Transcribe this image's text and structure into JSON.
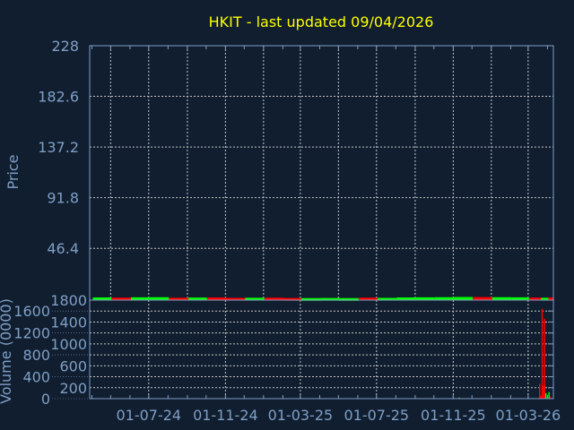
{
  "chart_data": [
    {
      "type": "line",
      "title": "HKIT - last updated 09/04/2026",
      "ylabel": "Price",
      "ylim": [
        0,
        228
      ],
      "yticks": [
        "228",
        "182.6",
        "137.2",
        "91.8",
        "46.4"
      ],
      "xticks": [
        "01-07-24",
        "01-11-24",
        "01-03-25",
        "01-07-25",
        "01-11-25",
        "01-03-26"
      ],
      "xrange": [
        "2024-03-27",
        "2026-04-09"
      ],
      "grid": true,
      "colors": {
        "up": "#00ff00",
        "down": "#ff0000",
        "title": "#ffff00",
        "axis": "#7f9fc6",
        "background": "#101e2f",
        "grid": "#c8c8c8"
      },
      "series": [
        {
          "values": [
            {
              "date": "2024-04-01",
              "price": 1.2,
              "dir": "up"
            },
            {
              "date": "2024-05-01",
              "price": 1.0,
              "dir": "down"
            },
            {
              "date": "2024-06-01",
              "price": 1.3,
              "dir": "up"
            },
            {
              "date": "2024-07-01",
              "price": 1.4,
              "dir": "up"
            },
            {
              "date": "2024-08-01",
              "price": 0.9,
              "dir": "down"
            },
            {
              "date": "2024-09-01",
              "price": 1.1,
              "dir": "up"
            },
            {
              "date": "2024-10-01",
              "price": 1.2,
              "dir": "down"
            },
            {
              "date": "2024-11-01",
              "price": 0.8,
              "dir": "down"
            },
            {
              "date": "2024-12-01",
              "price": 0.9,
              "dir": "up"
            },
            {
              "date": "2025-01-01",
              "price": 1.0,
              "dir": "down"
            },
            {
              "date": "2025-02-01",
              "price": 0.7,
              "dir": "down"
            },
            {
              "date": "2025-03-01",
              "price": 0.6,
              "dir": "up"
            },
            {
              "date": "2025-04-01",
              "price": 0.7,
              "dir": "up"
            },
            {
              "date": "2025-05-01",
              "price": 0.6,
              "dir": "up"
            },
            {
              "date": "2025-06-01",
              "price": 1.0,
              "dir": "down"
            },
            {
              "date": "2025-07-01",
              "price": 0.8,
              "dir": "up"
            },
            {
              "date": "2025-08-01",
              "price": 1.2,
              "dir": "up"
            },
            {
              "date": "2025-09-01",
              "price": 1.3,
              "dir": "up"
            },
            {
              "date": "2025-10-01",
              "price": 1.4,
              "dir": "up"
            },
            {
              "date": "2025-11-01",
              "price": 1.6,
              "dir": "up"
            },
            {
              "date": "2025-12-01",
              "price": 1.5,
              "dir": "down"
            },
            {
              "date": "2026-01-01",
              "price": 1.4,
              "dir": "up"
            },
            {
              "date": "2026-02-01",
              "price": 1.3,
              "dir": "up"
            },
            {
              "date": "2026-03-01",
              "price": 1.0,
              "dir": "down"
            },
            {
              "date": "2026-03-20",
              "price": 0.9,
              "dir": "up"
            },
            {
              "date": "2026-04-01",
              "price": 1.2,
              "dir": "down"
            }
          ]
        }
      ]
    },
    {
      "type": "bar",
      "ylabel": "Volume (0000)",
      "ylim": [
        0,
        1800
      ],
      "yticks": [
        "1800",
        "1600",
        "1400",
        "1200",
        "1000",
        "800",
        "600",
        "400",
        "200",
        "0"
      ],
      "grid": true,
      "values": [
        {
          "date": "2025-11-08",
          "volume": 20,
          "dir": "up"
        },
        {
          "date": "2026-03-17",
          "volume": 270,
          "dir": "down"
        },
        {
          "date": "2026-03-19",
          "volume": 60,
          "dir": "down"
        },
        {
          "date": "2026-03-21",
          "volume": 1640,
          "dir": "down"
        },
        {
          "date": "2026-03-23",
          "volume": 240,
          "dir": "down"
        },
        {
          "date": "2026-03-25",
          "volume": 1460,
          "dir": "down"
        },
        {
          "date": "2026-03-27",
          "volume": 100,
          "dir": "up"
        },
        {
          "date": "2026-04-01",
          "volume": 120,
          "dir": "up"
        },
        {
          "date": "2026-04-03",
          "volume": 40,
          "dir": "down"
        }
      ]
    }
  ]
}
